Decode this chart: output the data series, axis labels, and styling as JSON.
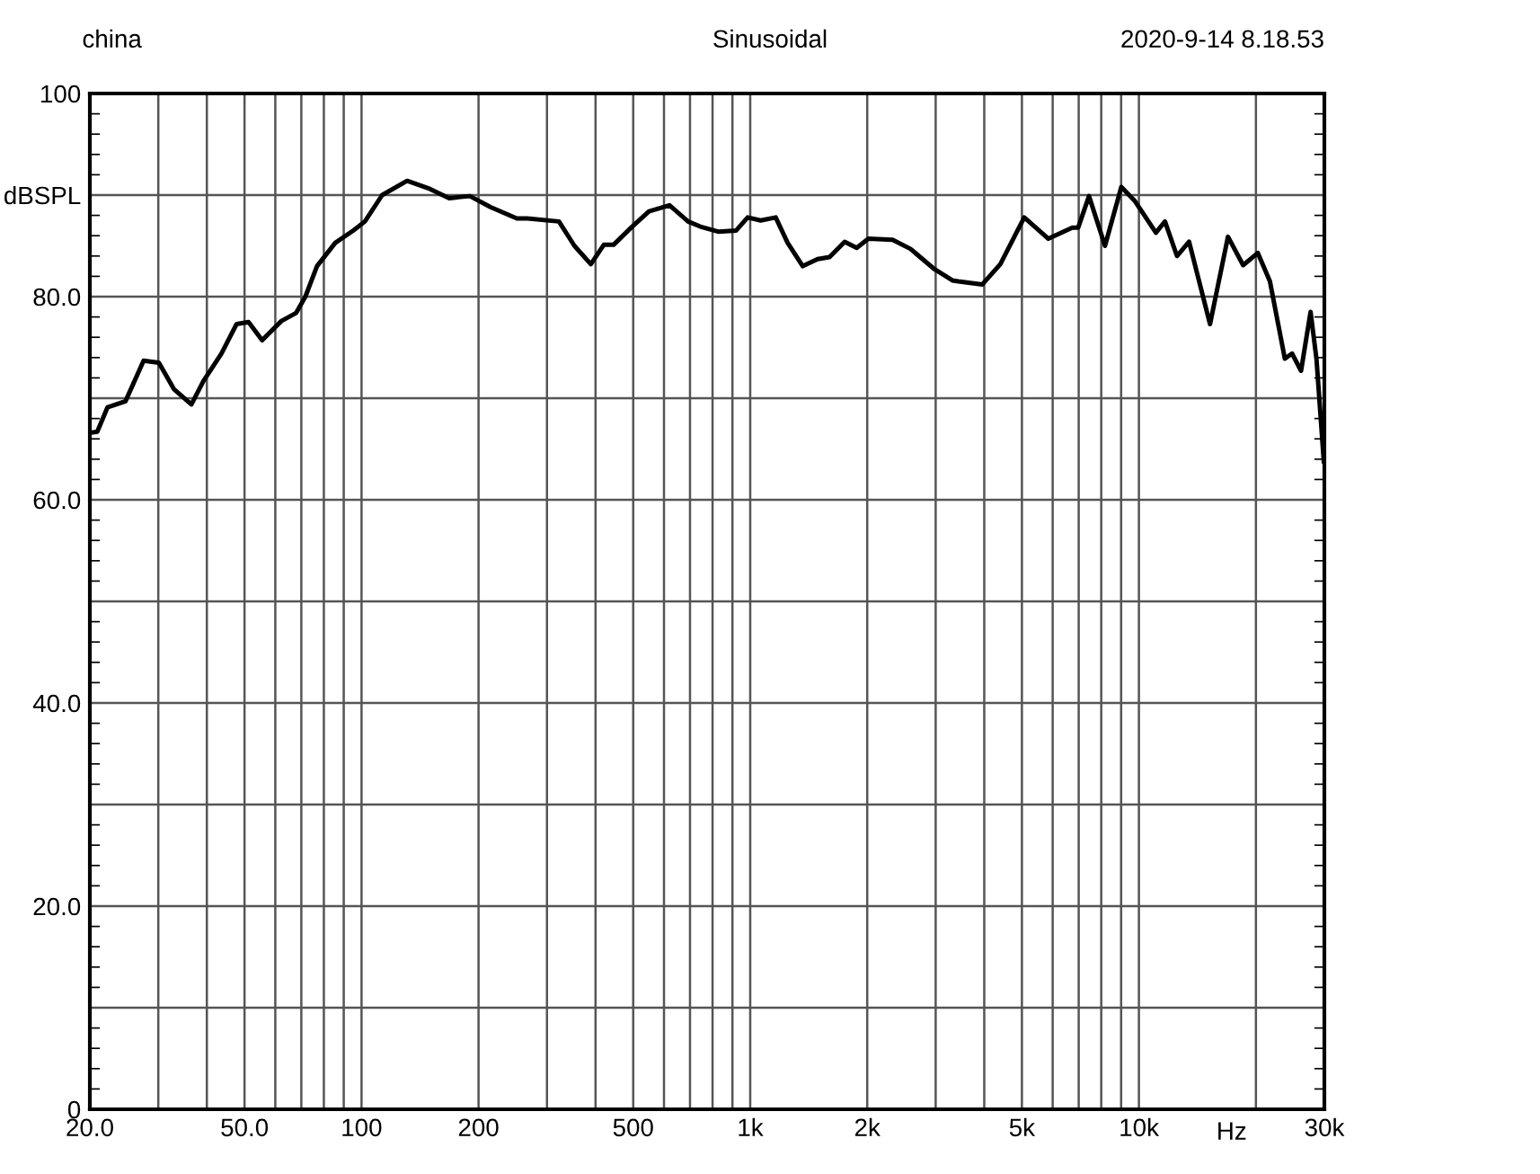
{
  "chart_data": {
    "type": "line",
    "title": "Sinusoidal",
    "annotations": [
      "china",
      "2020-9-14 8.18.53"
    ],
    "series": [
      {
        "color": "#000000",
        "x": [
          20,
          20.9,
          22.2,
          24.7,
          27.5,
          30.1,
          32.9,
          36.5,
          39.2,
          43.6,
          47.7,
          51.2,
          55.5,
          62.2,
          67.9,
          71.7,
          76.8,
          85.6,
          95.2,
          102,
          113,
          131,
          150,
          168,
          190,
          215,
          251,
          267,
          322,
          353,
          389,
          420,
          445,
          494,
          549,
          620,
          692,
          744,
          827,
          919,
          985,
          1064,
          1163,
          1248,
          1365,
          1490,
          1600,
          1750,
          1879,
          2014,
          2324,
          2584,
          2979,
          3312,
          3430,
          3955,
          4400,
          5070,
          5850,
          6740,
          6980,
          7440,
          8180,
          9010,
          9770,
          11060,
          11670,
          12530,
          13460,
          15240,
          16950,
          18540,
          20230,
          21730,
          23740,
          24780,
          26130,
          27650,
          28640,
          29900
        ],
        "values": [
          66.6,
          66.7,
          69.1,
          69.7,
          73.7,
          73.5,
          70.9,
          69.4,
          71.7,
          74.4,
          77.3,
          77.5,
          75.7,
          77.6,
          78.4,
          80.0,
          83.0,
          85.3,
          86.5,
          87.4,
          90.0,
          91.4,
          90.6,
          89.7,
          89.9,
          88.8,
          87.7,
          87.7,
          87.4,
          85.0,
          83.2,
          85.1,
          85.1,
          86.8,
          88.4,
          89.0,
          87.4,
          86.9,
          86.4,
          86.5,
          87.8,
          87.5,
          87.8,
          85.3,
          83.0,
          83.7,
          83.9,
          85.4,
          84.8,
          85.7,
          85.6,
          84.7,
          82.7,
          81.6,
          81.5,
          81.2,
          83.2,
          87.8,
          85.7,
          86.8,
          86.8,
          89.9,
          85.0,
          90.8,
          89.4,
          86.3,
          87.4,
          84.0,
          85.4,
          77.3,
          85.9,
          83.1,
          84.3,
          81.5,
          73.9,
          74.4,
          72.7,
          78.5,
          73.8,
          63.8
        ]
      }
    ],
    "xlabel": "Hz",
    "log": "x",
    "xlim": [
      20,
      30000
    ],
    "xticks": [
      {
        "value": 20,
        "label": "20.0"
      },
      {
        "value": 50,
        "label": "50.0"
      },
      100,
      200,
      500,
      {
        "value": 1000,
        "label": "1k"
      },
      {
        "value": 2000,
        "label": "2k"
      },
      {
        "value": 5000,
        "label": "5k"
      },
      {
        "value": 10000,
        "label": "10k"
      },
      {
        "value": 30000,
        "label": "30k"
      }
    ],
    "ylim": [
      0,
      100
    ],
    "yticks": [
      0,
      {
        "value": 10,
        "label": null
      },
      {
        "value": 20,
        "label": "20.0"
      },
      {
        "value": 30,
        "label": null
      },
      {
        "value": 40,
        "label": "40.0"
      },
      {
        "value": 50,
        "label": null
      },
      {
        "value": 60,
        "label": "60.0"
      },
      {
        "value": 70,
        "label": null
      },
      {
        "value": 80,
        "label": "80.0"
      },
      {
        "value": 90,
        "label": "dBSPL"
      },
      100
    ],
    "grid": true,
    "marker": "none",
    "line_style": "solid"
  }
}
